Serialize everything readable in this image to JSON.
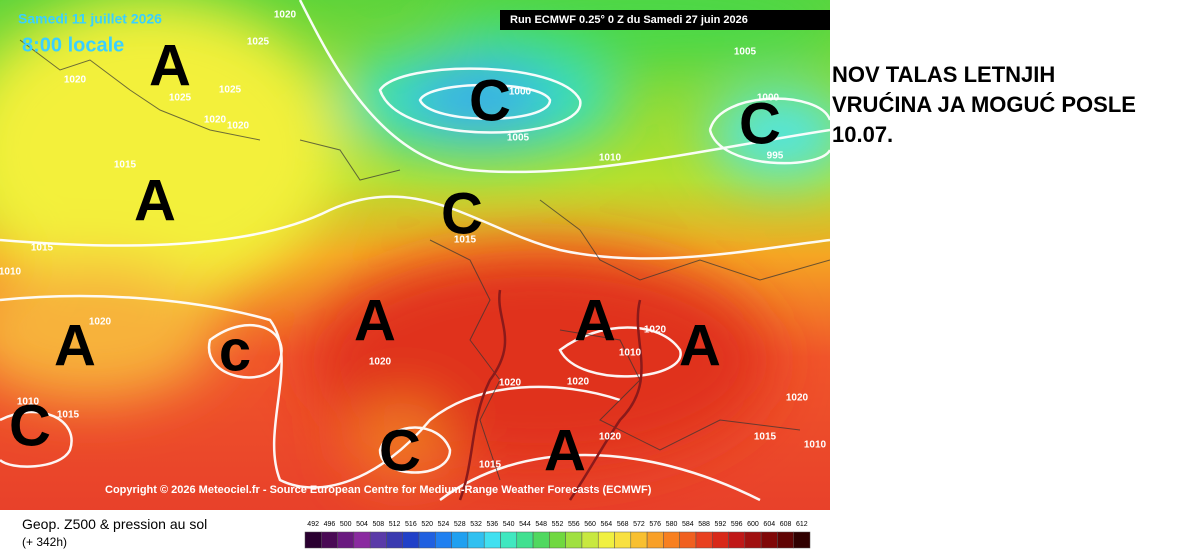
{
  "header": {
    "date": "Samedi 11 juillet 2026",
    "time": "8:00 locale"
  },
  "run": "Run ECMWF 0.25° 0 Z du Samedi 27 juin 2026",
  "copyright": "Copyright © 2026 Meteociel.fr - Source European Centre for Medium-Range Weather Forecasts (ECMWF)",
  "caption": [
    "NOV TALAS LETNJIH",
    "VRUĆINA JA MOGUĆ POSLE",
    "10.07."
  ],
  "pressure_centers": [
    "A",
    "A",
    "C",
    "C",
    "C",
    "A",
    "A",
    "c",
    "C",
    "C",
    "A",
    "A",
    "A"
  ],
  "isobar_labels": [
    "1020",
    "1025",
    "1020",
    "1025",
    "1025",
    "1020",
    "1020",
    "1015",
    "1015",
    "1010",
    "1020",
    "1010",
    "1015",
    "1020",
    "1000",
    "1005",
    "1010",
    "1005",
    "1000",
    "995",
    "1015",
    "1020",
    "1020",
    "1015",
    "1010",
    "1020",
    "1015",
    "1020",
    "1010",
    "1020"
  ],
  "legend": {
    "title": "Geop. Z500 & pression au sol",
    "subtitle": "(+ 342h)",
    "labels": [
      "492",
      "496",
      "500",
      "504",
      "508",
      "512",
      "516",
      "520",
      "524",
      "528",
      "532",
      "536",
      "540",
      "544",
      "548",
      "552",
      "556",
      "560",
      "564",
      "568",
      "572",
      "576",
      "580",
      "584",
      "588",
      "592",
      "596",
      "600",
      "604",
      "608",
      "612"
    ]
  }
}
